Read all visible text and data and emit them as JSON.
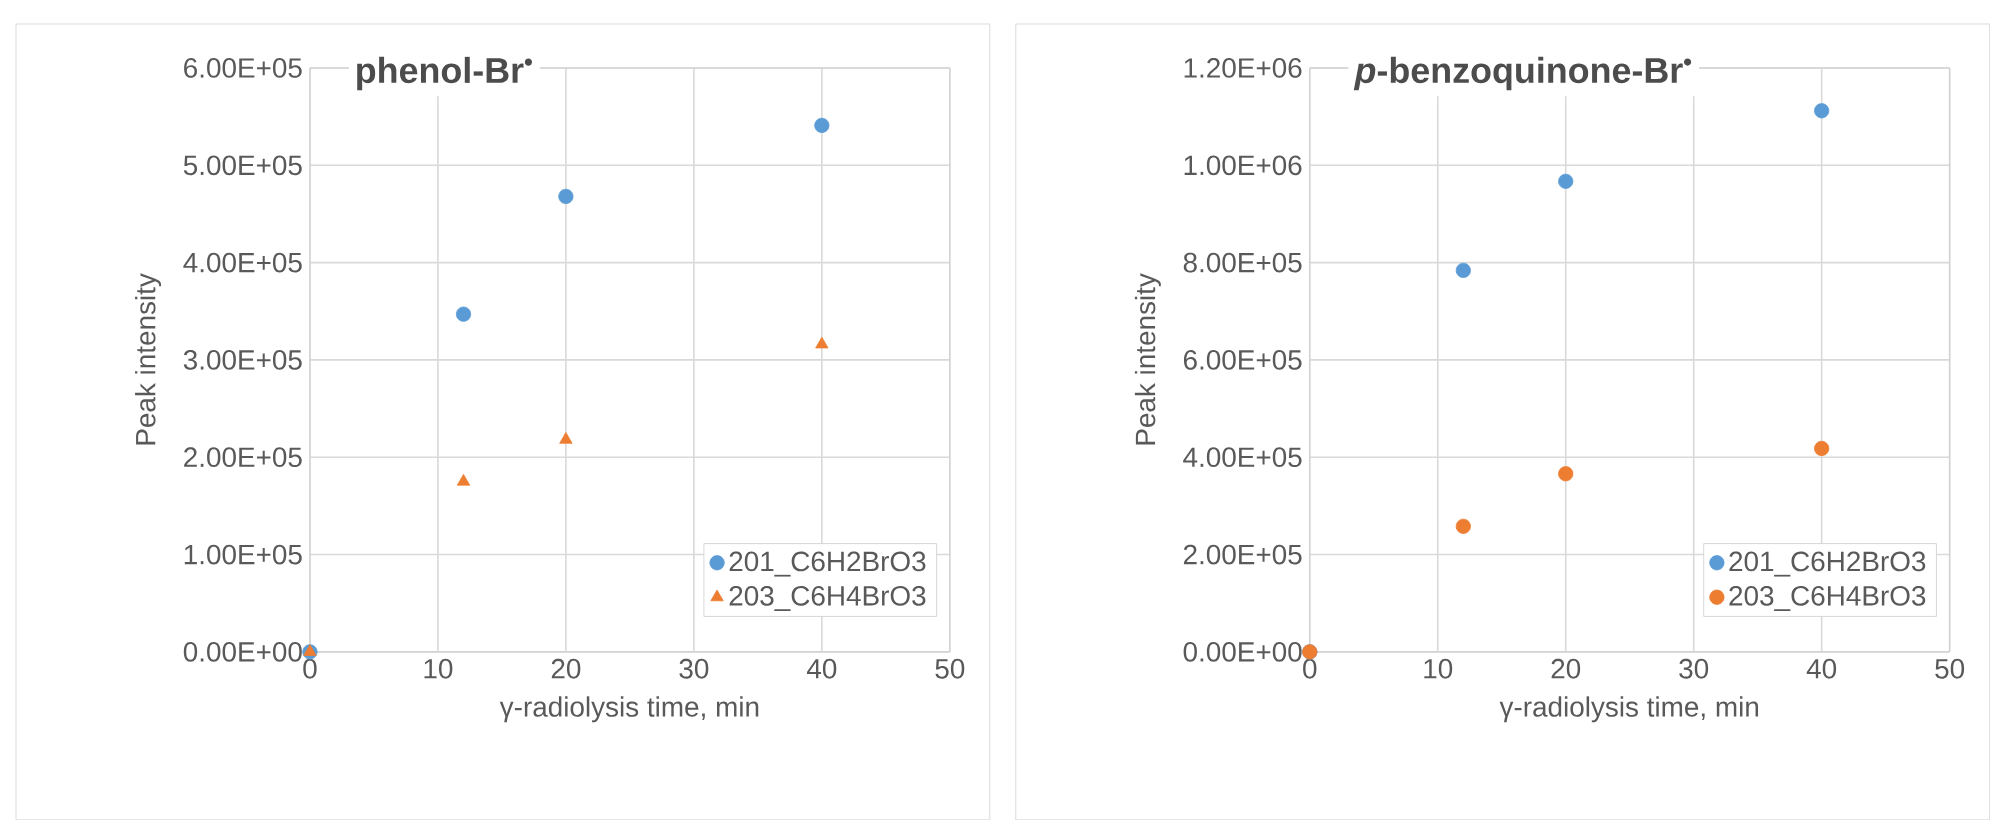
{
  "chart_data": [
    {
      "type": "scatter",
      "title": "phenol-Br$^{•}$",
      "xlabel": "γ-radiolysis time, min",
      "ylabel": "Peak intensity",
      "x": [
        0,
        12,
        20,
        40
      ],
      "series": [
        {
          "name": "201_C6H2BrO3",
          "color": "#5b9bd5",
          "marker": "circle",
          "values": [
            0,
            347000,
            468000,
            541000
          ]
        },
        {
          "name": "203_C6H4BrO3",
          "color": "#ed7d31",
          "marker": "triangle",
          "values": [
            0,
            175000,
            218000,
            316000
          ]
        }
      ],
      "xlim": [
        0,
        50
      ],
      "xticks": [
        0,
        10,
        20,
        30,
        40,
        50
      ],
      "ylim": [
        0,
        600000
      ],
      "yticks": [
        {
          "value": 0,
          "label": "0.00E+00"
        },
        {
          "value": 100000,
          "label": "1.00E+05"
        },
        {
          "value": 200000,
          "label": "2.00E+05"
        },
        {
          "value": 300000,
          "label": "3.00E+05"
        },
        {
          "value": 400000,
          "label": "4.00E+05"
        },
        {
          "value": 500000,
          "label": "5.00E+05"
        },
        {
          "value": 600000,
          "label": "6.00E+05"
        }
      ],
      "grid": true,
      "legend": "bottom right"
    },
    {
      "type": "scatter",
      "title": "*p*-benzoquinone-Br$^{•}$",
      "xlabel": "γ-radiolysis time, min",
      "ylabel": "Peak intensity",
      "x": [
        0,
        12,
        20,
        40
      ],
      "series": [
        {
          "name": "201_C6H2BrO3",
          "color": "#5b9bd5",
          "marker": "circle",
          "values": [
            0,
            784000,
            967000,
            1112000
          ]
        },
        {
          "name": "203_C6H4BrO3",
          "color": "#ed7d31",
          "marker": "circle",
          "values": [
            0,
            258000,
            366000,
            418000
          ]
        }
      ],
      "xlim": [
        0,
        50
      ],
      "xticks": [
        0,
        10,
        20,
        30,
        40,
        50
      ],
      "ylim": [
        0,
        1200000
      ],
      "yticks": [
        {
          "value": 0,
          "label": "0.00E+00"
        },
        {
          "value": 200000,
          "label": "2.00E+05"
        },
        {
          "value": 400000,
          "label": "4.00E+05"
        },
        {
          "value": 600000,
          "label": "6.00E+05"
        },
        {
          "value": 800000,
          "label": "8.00E+05"
        },
        {
          "value": 1000000,
          "label": "1.00E+06"
        },
        {
          "value": 1200000,
          "label": "1.20E+06"
        }
      ],
      "grid": true,
      "legend": "bottom right"
    }
  ]
}
